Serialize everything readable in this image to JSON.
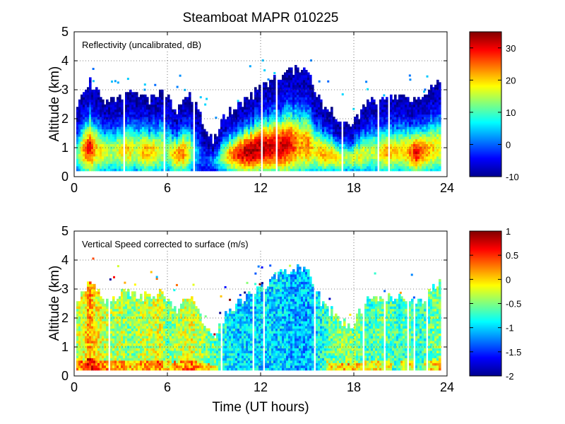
{
  "chart_data": [
    {
      "type": "heatmap",
      "title": "Steamboat MAPR 010225",
      "annotation": "Reflectivity (uncalibrated, dB)",
      "xlabel": "",
      "ylabel": "Altitude (km)",
      "xlim": [
        0,
        24
      ],
      "ylim": [
        0,
        5
      ],
      "xticks": [
        0,
        6,
        12,
        18,
        24
      ],
      "yticks": [
        0,
        1,
        2,
        3,
        4,
        5
      ],
      "colorbar": {
        "range": [
          -10,
          35
        ],
        "ticks": [
          -10,
          0,
          10,
          20,
          30
        ],
        "colormap": "jet"
      },
      "profile": {
        "x_hours": [
          0.2,
          0.6,
          1.0,
          1.4,
          2.0,
          2.5,
          3.0,
          3.5,
          4.0,
          4.5,
          5.0,
          5.5,
          6.0,
          6.5,
          7.0,
          7.5,
          8.0,
          8.5,
          9.0,
          9.5,
          10.0,
          10.5,
          11.0,
          11.5,
          12.0,
          12.5,
          13.0,
          13.5,
          14.0,
          14.5,
          15.0,
          15.5,
          16.0,
          16.5,
          17.0,
          17.5,
          18.0,
          18.5,
          19.0,
          19.5,
          20.0,
          20.5,
          21.0,
          21.5,
          22.0,
          22.5,
          23.0,
          23.5
        ],
        "top_km": [
          2.5,
          2.9,
          3.2,
          3.0,
          2.5,
          2.6,
          2.8,
          2.9,
          2.8,
          2.7,
          2.6,
          2.9,
          2.7,
          2.2,
          2.5,
          2.8,
          2.2,
          1.6,
          1.2,
          1.9,
          2.2,
          2.4,
          2.6,
          2.8,
          3.0,
          3.2,
          3.4,
          3.5,
          3.6,
          3.7,
          3.7,
          3.0,
          2.4,
          2.2,
          2.0,
          1.7,
          1.8,
          2.3,
          2.7,
          2.6,
          2.6,
          2.6,
          2.7,
          2.6,
          2.5,
          2.6,
          3.0,
          3.2
        ],
        "peak_dbz": [
          8,
          20,
          28,
          18,
          15,
          12,
          16,
          18,
          12,
          20,
          18,
          15,
          10,
          20,
          22,
          12,
          0,
          -5,
          0,
          10,
          20,
          26,
          30,
          32,
          30,
          30,
          28,
          30,
          26,
          20,
          22,
          16,
          20,
          18,
          16,
          12,
          14,
          16,
          12,
          14,
          20,
          18,
          16,
          20,
          28,
          22,
          18,
          16
        ]
      }
    },
    {
      "type": "heatmap",
      "title": "",
      "annotation": "Vertical Speed corrected to surface (m/s)",
      "xlabel": "Time (UT hours)",
      "ylabel": "Altitude (km)",
      "xlim": [
        0,
        24
      ],
      "ylim": [
        0,
        5
      ],
      "xticks": [
        0,
        6,
        12,
        18,
        24
      ],
      "yticks": [
        0,
        1,
        2,
        3,
        4,
        5
      ],
      "colorbar": {
        "range": [
          -2,
          1
        ],
        "ticks": [
          -2,
          -1.5,
          -1,
          -0.5,
          0,
          0.5,
          1
        ],
        "colormap": "jet"
      },
      "profile": {
        "x_hours": [
          0.2,
          0.6,
          1.0,
          1.4,
          2.0,
          2.5,
          3.0,
          3.5,
          4.0,
          4.5,
          5.0,
          5.5,
          6.0,
          6.5,
          7.0,
          7.5,
          8.0,
          8.5,
          9.0,
          9.5,
          10.0,
          10.5,
          11.0,
          11.5,
          12.0,
          12.5,
          13.0,
          13.5,
          14.0,
          14.5,
          15.0,
          15.5,
          16.0,
          16.5,
          17.0,
          17.5,
          18.0,
          18.5,
          19.0,
          19.5,
          20.0,
          20.5,
          21.0,
          21.5,
          22.0,
          22.5,
          23.0,
          23.5
        ],
        "top_km": [
          2.5,
          2.9,
          3.2,
          3.0,
          2.5,
          2.6,
          2.8,
          2.9,
          2.8,
          2.7,
          2.6,
          2.9,
          2.7,
          2.2,
          2.5,
          2.8,
          2.2,
          1.6,
          1.2,
          1.9,
          2.2,
          2.4,
          2.6,
          2.8,
          3.0,
          3.2,
          3.4,
          3.5,
          3.6,
          3.7,
          3.7,
          3.0,
          2.4,
          2.2,
          2.0,
          1.7,
          1.8,
          2.3,
          2.7,
          2.6,
          2.6,
          2.6,
          2.7,
          2.6,
          2.5,
          2.6,
          3.0,
          3.2
        ],
        "mean_ms": [
          -0.3,
          -0.2,
          0.2,
          -0.1,
          -0.3,
          -0.4,
          -0.3,
          -0.5,
          -0.4,
          -0.3,
          -0.3,
          -0.2,
          -0.6,
          -0.4,
          -0.3,
          -0.2,
          -0.3,
          -0.5,
          -0.6,
          -0.8,
          -0.9,
          -1.0,
          -1.0,
          -1.0,
          -1.0,
          -1.0,
          -1.0,
          -1.0,
          -1.1,
          -1.1,
          -1.1,
          -1.0,
          -0.8,
          -0.6,
          -0.5,
          -0.4,
          -0.5,
          -0.6,
          -0.7,
          -0.6,
          -0.6,
          -0.7,
          -0.7,
          -0.6,
          -0.7,
          -0.7,
          -0.6,
          -0.5
        ]
      }
    }
  ]
}
